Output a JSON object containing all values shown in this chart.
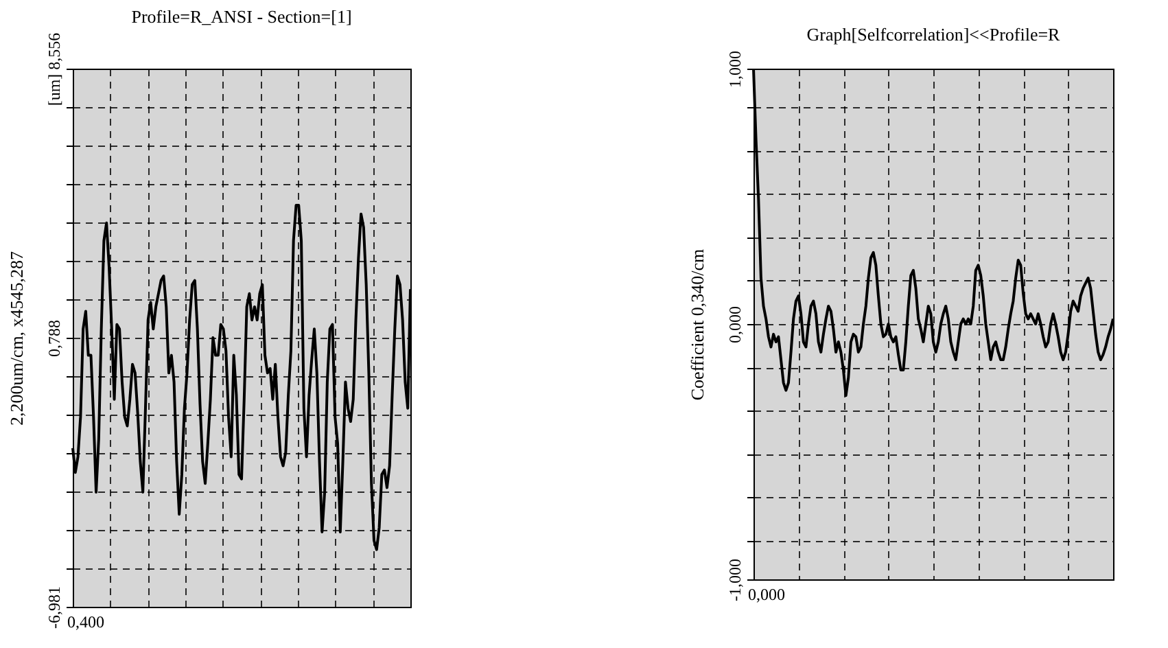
{
  "chart_data": [
    {
      "type": "line",
      "title": "Profile=R_ANSI - Section=[1]",
      "ylabel": "2,200um/cm, x4545,287",
      "color": "#000000",
      "grid": true,
      "tick_labels": "y",
      "annotations": [
        "0,400"
      ],
      "ylim": [
        -6.981,
        8.556
      ],
      "yticks": [
        {
          "value": 8.556,
          "label": "[um] 8,556"
        },
        {
          "value": 7.446,
          "label": null
        },
        {
          "value": 6.336,
          "label": null
        },
        {
          "value": 5.227,
          "label": null
        },
        {
          "value": 4.117,
          "label": null
        },
        {
          "value": 3.007,
          "label": null
        },
        {
          "value": 1.898,
          "label": null
        },
        {
          "value": 0.788,
          "label": "0,788"
        },
        {
          "value": -0.322,
          "label": null
        },
        {
          "value": -1.432,
          "label": null
        },
        {
          "value": -2.541,
          "label": null
        },
        {
          "value": -3.651,
          "label": null
        },
        {
          "value": -4.761,
          "label": null
        },
        {
          "value": -5.871,
          "label": null
        },
        {
          "value": -6.981,
          "label": "-6,981"
        }
      ],
      "categories": [
        null,
        null,
        null,
        null,
        null,
        null,
        null,
        null,
        null,
        null,
        null,
        null,
        null,
        null,
        null,
        null,
        null,
        null,
        null,
        null,
        null,
        null,
        null,
        null,
        null,
        null,
        null,
        null,
        null,
        null,
        null,
        null,
        null,
        null,
        null,
        null,
        null,
        null,
        null,
        null,
        null,
        null,
        null,
        null,
        null,
        null,
        null,
        null,
        null,
        null,
        null,
        null,
        null,
        null,
        null,
        null,
        null,
        null,
        null,
        null,
        null,
        null,
        null,
        null,
        null,
        null,
        null,
        null,
        null,
        null,
        null,
        null,
        null,
        null,
        null,
        null,
        null,
        null,
        null,
        null,
        null,
        null,
        null,
        null,
        null,
        null,
        null,
        null,
        null,
        null,
        null,
        null,
        null,
        null,
        null,
        null,
        null,
        null,
        null,
        null,
        null,
        null,
        null,
        null,
        null,
        null,
        null,
        null,
        null,
        null,
        null,
        null,
        null,
        null,
        null,
        null,
        null,
        null,
        null,
        null,
        null,
        null,
        null,
        null,
        null,
        null,
        null,
        null,
        null,
        null,
        null
      ],
      "values": [
        -2.4,
        -3.1,
        -2.65,
        -1.5,
        1.04,
        1.55,
        0.28,
        0.28,
        -1.5,
        -3.67,
        -2.14,
        1.04,
        3.59,
        4.1,
        2.83,
        1.04,
        -0.99,
        1.17,
        1.04,
        -0.49,
        -1.5,
        -1.76,
        -0.99,
        0.02,
        -0.23,
        -1.38,
        -2.78,
        -3.67,
        -1.25,
        1.3,
        1.81,
        1.04,
        1.68,
        2.06,
        2.44,
        2.57,
        1.68,
        -0.23,
        0.28,
        -0.49,
        -2.78,
        -4.31,
        -3.16,
        -1.25,
        -0.23,
        1.3,
        2.32,
        2.44,
        1.04,
        -1.12,
        -2.78,
        -3.42,
        -2.27,
        -0.99,
        0.79,
        0.28,
        0.28,
        1.17,
        1.04,
        0.41,
        -1.5,
        -2.65,
        0.28,
        -0.87,
        -3.16,
        -3.29,
        -0.99,
        1.68,
        2.06,
        1.3,
        1.68,
        1.3,
        2.06,
        2.32,
        0.28,
        -0.23,
        -0.1,
        -0.99,
        0.02,
        -1.5,
        -2.65,
        -2.91,
        -2.52,
        -0.87,
        0.41,
        3.59,
        4.61,
        4.61,
        3.59,
        -1.25,
        -2.65,
        -0.87,
        0.15,
        1.04,
        -0.23,
        -2.78,
        -4.82,
        -3.67,
        -0.49,
        1.04,
        1.17,
        -1.5,
        -2.27,
        -4.82,
        -2.78,
        -0.49,
        -1.25,
        -1.63,
        -0.99,
        1.3,
        3.08,
        4.36,
        3.97,
        2.32,
        -0.23,
        -3.42,
        -5.07,
        -5.33,
        -4.69,
        -3.16,
        -3.03,
        -3.54,
        -2.91,
        -0.87,
        1.04,
        2.57,
        2.32,
        1.3,
        -0.49,
        -1.25,
        2.19
      ]
    },
    {
      "type": "line",
      "title": "Graph[Selfcorrelation]<<Profile=R",
      "ylabel": "Coefficient 0,340/cm",
      "color": "#000000",
      "grid": true,
      "tick_labels": "y",
      "annotations": [
        "0,000"
      ],
      "ylim": [
        -1,
        1
      ],
      "yticks": [
        {
          "value": 1,
          "label": "1,000"
        },
        {
          "value": 0.85,
          "label": null
        },
        {
          "value": 0.68,
          "label": null
        },
        {
          "value": 0.51,
          "label": null
        },
        {
          "value": 0.34,
          "label": null
        },
        {
          "value": 0.17,
          "label": null
        },
        {
          "value": 0,
          "label": "0,000"
        },
        {
          "value": -0.17,
          "label": null
        },
        {
          "value": -0.34,
          "label": null
        },
        {
          "value": -0.51,
          "label": null
        },
        {
          "value": -0.68,
          "label": null
        },
        {
          "value": -0.85,
          "label": null
        },
        {
          "value": -1,
          "label": "-1,000"
        }
      ],
      "categories": [
        null,
        null,
        null,
        null,
        null,
        null,
        null,
        null,
        null,
        null,
        null,
        null,
        null,
        null,
        null,
        null,
        null,
        null,
        null,
        null,
        null,
        null,
        null,
        null,
        null,
        null,
        null,
        null,
        null,
        null,
        null,
        null,
        null,
        null,
        null,
        null,
        null,
        null,
        null,
        null,
        null,
        null,
        null,
        null,
        null,
        null,
        null,
        null,
        null,
        null,
        null,
        null,
        null,
        null,
        null,
        null,
        null,
        null,
        null,
        null,
        null,
        null,
        null,
        null,
        null,
        null,
        null,
        null,
        null,
        null,
        null,
        null,
        null,
        null,
        null,
        null,
        null,
        null,
        null,
        null,
        null,
        null,
        null,
        null,
        null,
        null,
        null,
        null,
        null,
        null,
        null,
        null,
        null,
        null,
        null,
        null,
        null,
        null,
        null,
        null,
        null,
        null,
        null,
        null,
        null,
        null,
        null,
        null,
        null,
        null,
        null,
        null,
        null,
        null,
        null,
        null,
        null,
        null,
        null,
        null,
        null,
        null,
        null,
        null,
        null,
        null,
        null,
        null,
        null,
        null,
        null,
        null,
        null,
        null,
        null,
        null,
        null,
        null,
        null,
        null,
        null,
        null,
        null,
        null,
        null
      ],
      "values": [
        1.0,
        0.72,
        0.49,
        0.18,
        0.07,
        0.02,
        -0.05,
        -0.09,
        -0.04,
        -0.07,
        -0.05,
        -0.14,
        -0.23,
        -0.26,
        -0.23,
        -0.11,
        0.02,
        0.09,
        0.11,
        0.04,
        -0.07,
        -0.09,
        0.0,
        0.07,
        0.09,
        0.04,
        -0.07,
        -0.11,
        -0.04,
        0.02,
        0.07,
        0.05,
        -0.02,
        -0.11,
        -0.07,
        -0.11,
        -0.18,
        -0.28,
        -0.21,
        -0.07,
        -0.04,
        -0.05,
        -0.11,
        -0.09,
        0.0,
        0.07,
        0.18,
        0.26,
        0.28,
        0.23,
        0.11,
        0.0,
        -0.05,
        -0.04,
        0.0,
        -0.05,
        -0.07,
        -0.05,
        -0.12,
        -0.18,
        -0.18,
        -0.07,
        0.07,
        0.19,
        0.21,
        0.14,
        0.02,
        -0.02,
        -0.07,
        0.0,
        0.07,
        0.04,
        -0.07,
        -0.11,
        -0.07,
        0.0,
        0.04,
        0.07,
        0.02,
        -0.07,
        -0.11,
        -0.14,
        -0.07,
        0.0,
        0.02,
        0.0,
        0.02,
        0.0,
        0.07,
        0.21,
        0.23,
        0.19,
        0.11,
        0.0,
        -0.07,
        -0.14,
        -0.09,
        -0.07,
        -0.11,
        -0.14,
        -0.14,
        -0.09,
        -0.02,
        0.04,
        0.09,
        0.18,
        0.25,
        0.23,
        0.12,
        0.04,
        0.02,
        0.04,
        0.02,
        0.0,
        0.04,
        0.0,
        -0.05,
        -0.09,
        -0.07,
        0.0,
        0.04,
        0.0,
        -0.05,
        -0.11,
        -0.14,
        -0.11,
        -0.04,
        0.05,
        0.09,
        0.07,
        0.05,
        0.11,
        0.14,
        0.16,
        0.18,
        0.14,
        0.05,
        -0.04,
        -0.11,
        -0.14,
        -0.12,
        -0.09,
        -0.05,
        -0.02,
        0.02
      ]
    }
  ]
}
